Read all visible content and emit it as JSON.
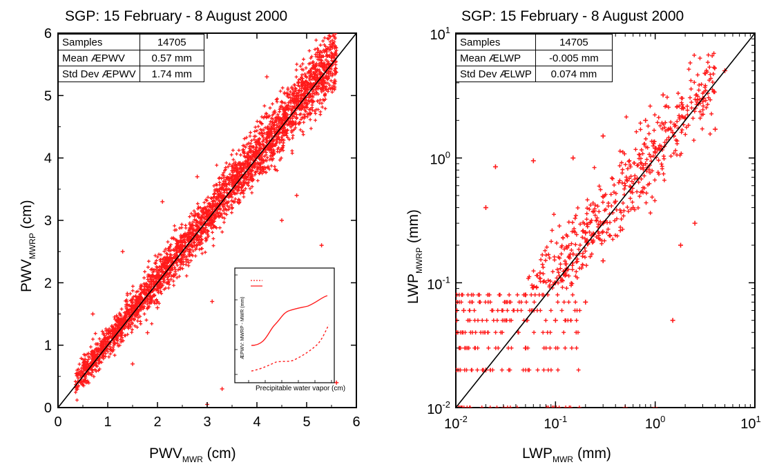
{
  "left_panel": {
    "title": "SGP:  15 February - 8 August 2000",
    "stats": [
      {
        "label": "Samples",
        "value": "14705"
      },
      {
        "label": "Mean ÆPWV",
        "value": "0.57 mm"
      },
      {
        "label": "Std Dev ÆPWV",
        "value": "1.74 mm"
      }
    ]
  },
  "right_panel": {
    "title": "SGP:  15 February - 8 August 2000",
    "stats": [
      {
        "label": "Samples",
        "value": "14705"
      },
      {
        "label": "Mean ÆLWP",
        "value": "-0.005 mm"
      },
      {
        "label": "Std Dev ÆLWP",
        "value": "0.074 mm"
      }
    ]
  },
  "colors": {
    "points": "#ff1a1a",
    "line": "#000000",
    "axes": "#000000"
  },
  "chart_data": [
    {
      "type": "scatter",
      "title": "SGP:  15 February - 8 August 2000",
      "xlabel": {
        "main": "PWV",
        "sub": "MWR",
        "unit": "(cm)"
      },
      "ylabel": {
        "main": "PWV",
        "sub": "MWRP",
        "unit": "(cm)"
      },
      "xlim": [
        0,
        6
      ],
      "ylim": [
        0,
        6
      ],
      "xticks": [
        0,
        1,
        2,
        3,
        4,
        5,
        6
      ],
      "yticks": [
        0,
        1,
        2,
        3,
        4,
        5,
        6
      ],
      "reference_line": "1:1",
      "n_samples": 14705,
      "distribution": {
        "x_range": [
          0.35,
          5.6
        ],
        "scatter_about_line_cm": 0.17
      },
      "series": [
        {
          "values": [
            [
              0.4,
              0.42
            ],
            [
              0.5,
              0.55
            ],
            [
              0.6,
              0.6
            ],
            [
              0.7,
              0.68
            ],
            [
              0.8,
              0.85
            ],
            [
              0.9,
              0.95
            ],
            [
              1.0,
              1.05
            ],
            [
              1.2,
              1.3
            ],
            [
              1.5,
              1.6
            ],
            [
              1.8,
              1.9
            ],
            [
              2.0,
              2.1
            ],
            [
              2.3,
              2.35
            ],
            [
              2.5,
              2.6
            ],
            [
              2.8,
              2.9
            ],
            [
              3.0,
              3.1
            ],
            [
              3.3,
              3.35
            ],
            [
              3.5,
              3.6
            ],
            [
              3.8,
              3.9
            ],
            [
              4.0,
              4.1
            ],
            [
              4.3,
              4.35
            ],
            [
              4.5,
              4.6
            ],
            [
              4.8,
              4.9
            ],
            [
              5.0,
              5.1
            ],
            [
              5.2,
              5.4
            ],
            [
              5.4,
              5.7
            ],
            [
              3.0,
              0.05
            ],
            [
              3.3,
              0.3
            ],
            [
              1.8,
              1.2
            ],
            [
              4.5,
              3.0
            ],
            [
              2.0,
              1.6
            ],
            [
              1.3,
              2.5
            ],
            [
              0.7,
              1.5
            ],
            [
              2.8,
              3.7
            ],
            [
              5.6,
              0.4
            ],
            [
              2.1,
              3.3
            ],
            [
              4.2,
              5.3
            ],
            [
              1.5,
              0.7
            ],
            [
              3.1,
              1.7
            ],
            [
              4.8,
              3.4
            ],
            [
              5.3,
              2.6
            ]
          ]
        }
      ]
    },
    {
      "type": "scatter",
      "title": "SGP:  15 February - 8 August 2000",
      "xlabel": {
        "main": "LWP",
        "sub": "MWR",
        "unit": "(mm)"
      },
      "ylabel": {
        "main": "LWP",
        "sub": "MWRP",
        "unit": "(mm)"
      },
      "xscale": "log",
      "yscale": "log",
      "xlim": [
        0.01,
        10
      ],
      "ylim": [
        0.01,
        10
      ],
      "xticks": [
        {
          "base": "10",
          "exp": "-2"
        },
        {
          "base": "10",
          "exp": "-1"
        },
        {
          "base": "10",
          "exp": "0"
        },
        {
          "base": "10",
          "exp": "1"
        }
      ],
      "yticks": [
        {
          "base": "10",
          "exp": "-2"
        },
        {
          "base": "10",
          "exp": "-1"
        },
        {
          "base": "10",
          "exp": "0"
        },
        {
          "base": "10",
          "exp": "1"
        }
      ],
      "reference_line": "1:1",
      "n_samples": 14705,
      "quantized_y_levels": [
        0.01,
        0.02,
        0.03,
        0.04,
        0.05,
        0.06,
        0.07,
        0.08
      ],
      "series": [
        {
          "values": [
            [
              0.012,
              0.06
            ],
            [
              0.02,
              0.02
            ],
            [
              0.05,
              0.03
            ],
            [
              0.1,
              0.05
            ],
            [
              0.2,
              0.07
            ],
            [
              0.5,
              0.01
            ],
            [
              1.0,
              0.01
            ],
            [
              1.5,
              0.05
            ],
            [
              0.1,
              0.1
            ],
            [
              0.15,
              0.17
            ],
            [
              0.2,
              0.25
            ],
            [
              0.3,
              0.3
            ],
            [
              0.4,
              0.45
            ],
            [
              0.5,
              0.6
            ],
            [
              0.8,
              0.9
            ],
            [
              1.0,
              1.1
            ],
            [
              1.5,
              1.6
            ],
            [
              2.0,
              2.1
            ],
            [
              3.0,
              3.0
            ],
            [
              5.0,
              5.0
            ],
            [
              0.05,
              0.08
            ],
            [
              0.07,
              0.12
            ],
            [
              0.3,
              0.15
            ],
            [
              0.6,
              0.4
            ],
            [
              1.2,
              3.2
            ],
            [
              0.8,
              2.0
            ],
            [
              0.02,
              0.4
            ],
            [
              0.15,
              1.0
            ],
            [
              0.3,
              1.5
            ],
            [
              2.5,
              0.3
            ],
            [
              0.025,
              0.85
            ],
            [
              0.06,
              0.95
            ],
            [
              1.8,
              0.2
            ],
            [
              4.0,
              1.7
            ]
          ]
        }
      ]
    }
  ]
}
